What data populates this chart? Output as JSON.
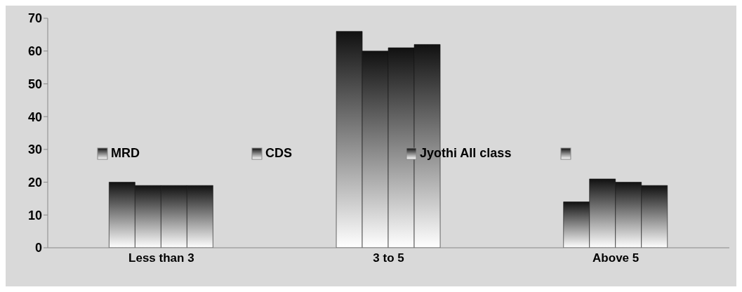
{
  "chart_data": {
    "type": "bar",
    "categories": [
      "Less than 3",
      "3 to 5",
      "Above 5"
    ],
    "series": [
      {
        "name": "MRD",
        "color": "#111111",
        "values": [
          20,
          66,
          14
        ]
      },
      {
        "name": "CDS",
        "color": "#111111",
        "values": [
          19,
          60,
          21
        ]
      },
      {
        "name": "Jyothi All class",
        "color": "#111111",
        "values": [
          19,
          61,
          20
        ]
      },
      {
        "color": "#111111",
        "values": [
          19,
          62,
          19
        ]
      }
    ],
    "ylim": [
      0,
      70
    ],
    "yticks": [
      0,
      10,
      20,
      30,
      40,
      50,
      60,
      70
    ],
    "grid": false,
    "legend": "center"
  }
}
